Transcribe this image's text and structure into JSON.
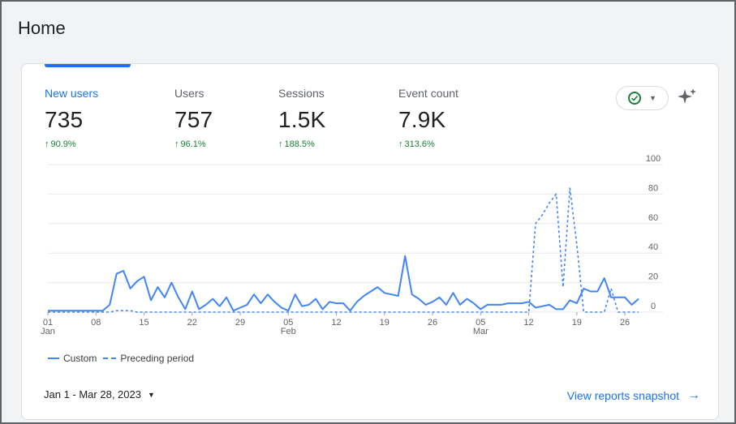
{
  "page": {
    "title": "Home"
  },
  "metrics": [
    {
      "label": "New users",
      "value": "735",
      "change": "90.9%",
      "active": true
    },
    {
      "label": "Users",
      "value": "757",
      "change": "96.1%"
    },
    {
      "label": "Sessions",
      "value": "1.5K",
      "change": "188.5%"
    },
    {
      "label": "Event count",
      "value": "7.9K",
      "change": "313.6%"
    }
  ],
  "icons": {
    "compare": "check-circle-icon",
    "insights": "sparkle-icon",
    "change": "arrow-up-icon"
  },
  "colors": {
    "accent": "#1a73e8",
    "series": "#4285f4",
    "positive": "#188038"
  },
  "legend": {
    "custom": "Custom",
    "preceding": "Preceding period"
  },
  "footer": {
    "date_range": "Jan 1 - Mar 28, 2023",
    "view_link": "View reports snapshot"
  },
  "chart_data": {
    "type": "line",
    "x_ticks": [
      {
        "day": 1,
        "label": "01",
        "month": "Jan"
      },
      {
        "day": 8,
        "label": "08"
      },
      {
        "day": 15,
        "label": "15"
      },
      {
        "day": 22,
        "label": "22"
      },
      {
        "day": 29,
        "label": "29"
      },
      {
        "day": 36,
        "label": "05",
        "month": "Feb"
      },
      {
        "day": 43,
        "label": "12"
      },
      {
        "day": 50,
        "label": "19"
      },
      {
        "day": 57,
        "label": "26"
      },
      {
        "day": 64,
        "label": "05",
        "month": "Mar"
      },
      {
        "day": 71,
        "label": "12"
      },
      {
        "day": 78,
        "label": "19"
      },
      {
        "day": 85,
        "label": "26"
      }
    ],
    "y_ticks": [
      100,
      80,
      60,
      40,
      20,
      0
    ],
    "ylim": [
      0,
      100
    ],
    "xlim": [
      1,
      87
    ],
    "series": [
      {
        "name": "Custom",
        "style": "solid",
        "values": [
          1,
          1,
          1,
          1,
          1,
          1,
          1,
          1,
          1,
          5,
          26,
          28,
          16,
          21,
          24,
          8,
          17,
          10,
          20,
          10,
          2,
          14,
          2,
          5,
          9,
          4,
          10,
          1,
          3,
          5,
          12,
          6,
          12,
          7,
          3,
          1,
          12,
          4,
          5,
          9,
          2,
          7,
          6,
          6,
          1,
          7,
          11,
          14,
          17,
          13,
          12,
          11,
          38,
          12,
          9,
          5,
          7,
          10,
          5,
          13,
          5,
          9,
          6,
          2,
          5,
          5,
          5,
          6,
          6,
          6,
          7,
          3,
          4,
          5,
          2,
          2,
          8,
          6,
          16,
          14,
          14,
          23,
          10,
          10,
          10,
          5,
          9
        ]
      },
      {
        "name": "Preceding period",
        "style": "dashed",
        "values": [
          0,
          0,
          0,
          0,
          0,
          0,
          0,
          0,
          0,
          0,
          1,
          1,
          1,
          0,
          0,
          0,
          0,
          0,
          0,
          0,
          0,
          0,
          0,
          0,
          0,
          0,
          0,
          0,
          0,
          0,
          0,
          0,
          0,
          0,
          0,
          0,
          0,
          0,
          0,
          0,
          0,
          0,
          0,
          0,
          0,
          0,
          0,
          0,
          0,
          0,
          0,
          0,
          0,
          0,
          0,
          0,
          0,
          0,
          0,
          0,
          0,
          0,
          0,
          0,
          0,
          0,
          0,
          0,
          0,
          0,
          0,
          60,
          66,
          74,
          80,
          17,
          84,
          46,
          0,
          0,
          0,
          0,
          16,
          0,
          0,
          0,
          0
        ]
      }
    ]
  }
}
